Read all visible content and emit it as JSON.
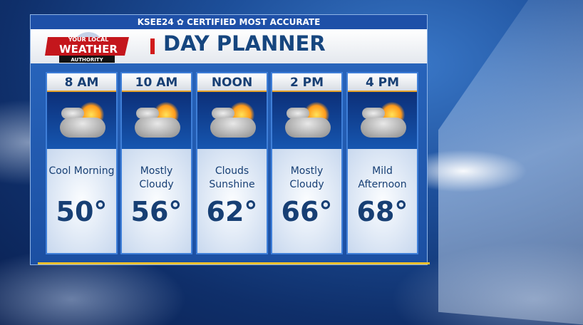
{
  "header": {
    "network": "KSEE24",
    "tagline": "CERTIFIED MOST ACCURATE",
    "title": "DAY PLANNER",
    "logo_text": "YOUR LOCAL WEATHER AUTHORITY"
  },
  "forecast": [
    {
      "time": "8 AM",
      "icon": "partly-cloudy-icon",
      "condition": "Cool Morning",
      "temp": "50°"
    },
    {
      "time": "10 AM",
      "icon": "partly-cloudy-icon",
      "condition": "Mostly Cloudy",
      "temp": "56°"
    },
    {
      "time": "NOON",
      "icon": "partly-cloudy-icon",
      "condition": "Clouds Sunshine",
      "temp": "62°"
    },
    {
      "time": "2 PM",
      "icon": "partly-cloudy-icon",
      "condition": "Mostly Cloudy",
      "temp": "66°"
    },
    {
      "time": "4 PM",
      "icon": "partly-cloudy-icon",
      "condition": "Mild Afternoon",
      "temp": "68°"
    }
  ],
  "colors": {
    "title": "#16467f",
    "accent_red": "#d11b1b",
    "gold": "#f2c12e",
    "panel": "#1b4fa2"
  }
}
